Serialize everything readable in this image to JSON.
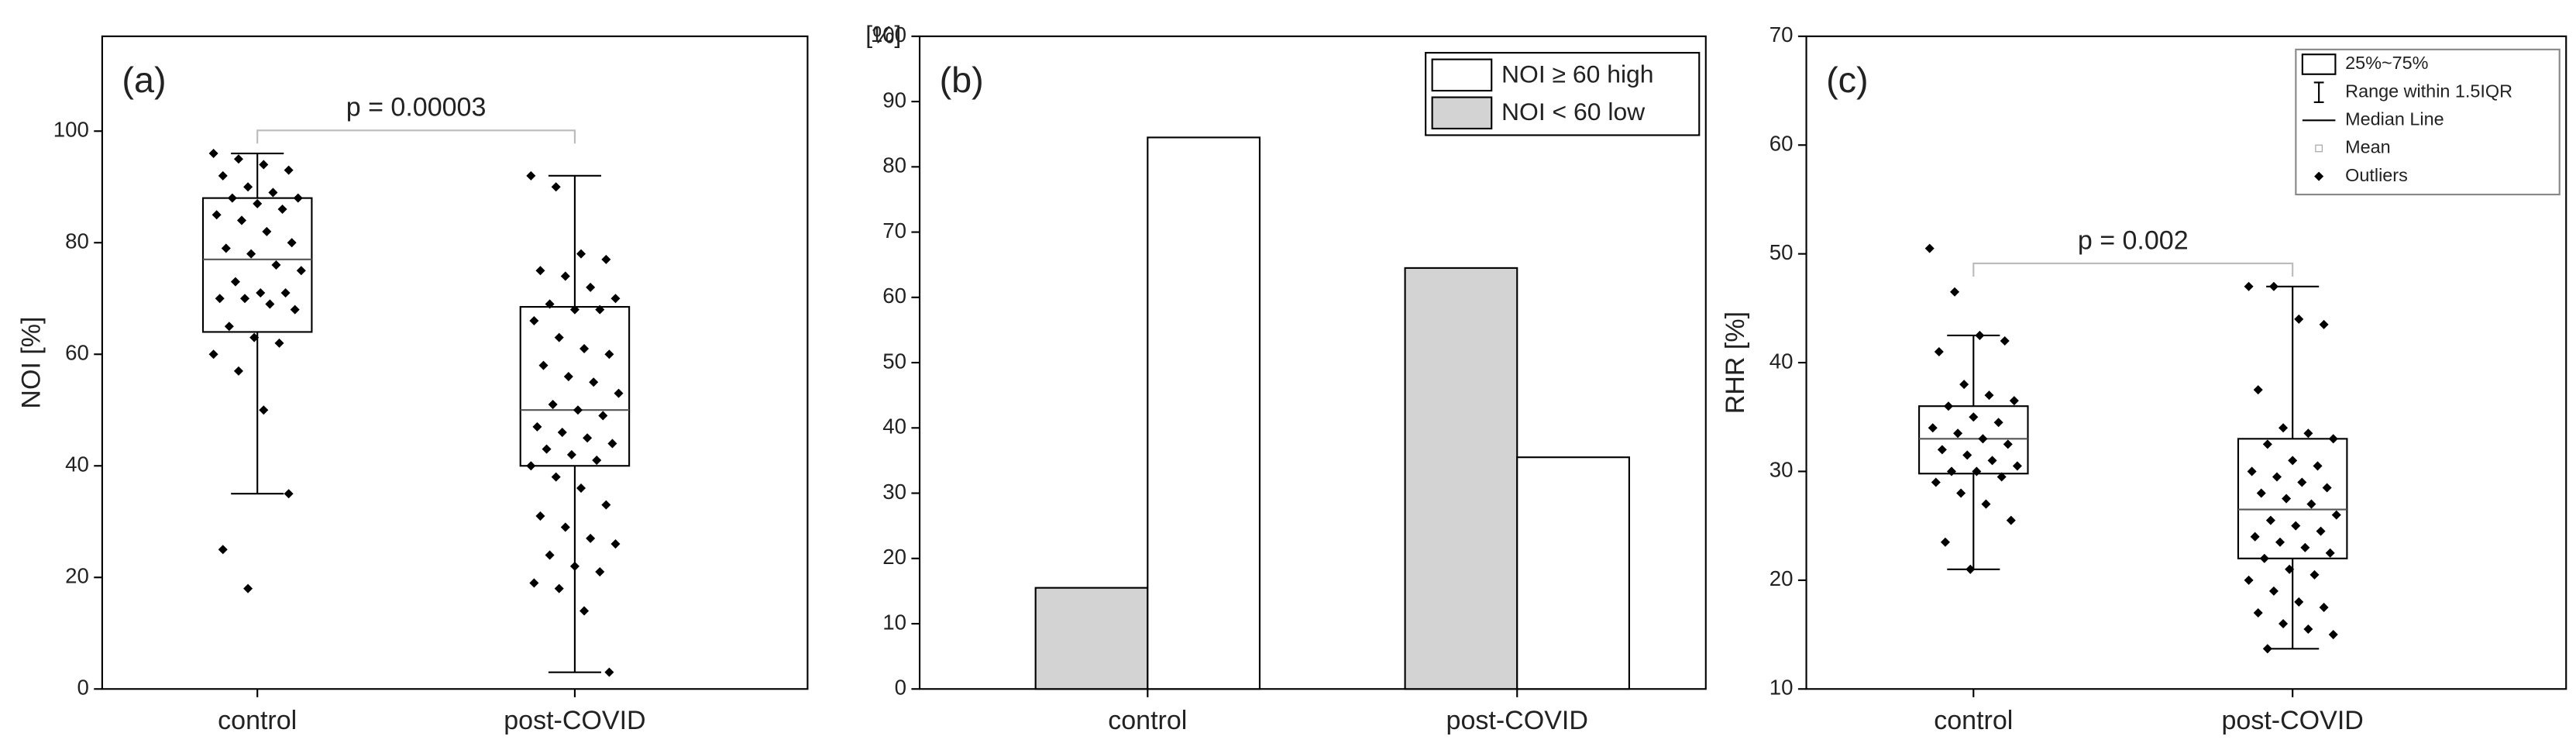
{
  "chart_data": [
    {
      "type": "box",
      "panel_label": "(a)",
      "ylabel": "NOI [%]",
      "annotation": "p = 0.00003",
      "categories": [
        "control",
        "post-COVID"
      ],
      "stats": [
        {
          "min": 35,
          "q1": 64,
          "median": 77,
          "q3": 88,
          "max": 96
        },
        {
          "min": 3,
          "q1": 40,
          "median": 50,
          "q3": 68.5,
          "max": 92
        }
      ],
      "points": [
        [
          96,
          95,
          94,
          93,
          92,
          90,
          89,
          88,
          88,
          87,
          86,
          85,
          84,
          82,
          80,
          79,
          78,
          76,
          75,
          73,
          71,
          71,
          70,
          70,
          69,
          68,
          65,
          63,
          62,
          60,
          57,
          50,
          35,
          25,
          18
        ],
        [
          92,
          90,
          78,
          77,
          75,
          74,
          72,
          70,
          69,
          68,
          68,
          66,
          63,
          61,
          60,
          58,
          56,
          55,
          53,
          51,
          50,
          49,
          47,
          46,
          45,
          44,
          43,
          42,
          41,
          40,
          38,
          36,
          33,
          31,
          29,
          27,
          26,
          24,
          22,
          21,
          19,
          18,
          14,
          3
        ]
      ],
      "color": "#000000",
      "ylim": [
        0,
        117
      ],
      "yticks": [
        0,
        20,
        40,
        60,
        80,
        100
      ]
    },
    {
      "type": "bar",
      "panel_label": "(b)",
      "ylabel": "[%]",
      "legend": "upper right",
      "categories": [
        "control",
        "post-COVID"
      ],
      "series": [
        {
          "name": "NOI < 60 low",
          "color": "#d3d3d3",
          "values": [
            15.5,
            64.5
          ]
        },
        {
          "name": "NOI ≥ 60 high",
          "color": "#ffffff",
          "values": [
            84.5,
            35.5
          ]
        }
      ],
      "ylim": [
        0,
        100
      ],
      "yticks": [
        0,
        10,
        20,
        30,
        40,
        50,
        60,
        70,
        80,
        90,
        100
      ]
    },
    {
      "type": "box",
      "panel_label": "(c)",
      "ylabel": "RHR [%]",
      "annotation": "p = 0.002",
      "legend_items": [
        "25%~75%",
        "Range within 1.5IQR",
        "Median Line",
        "Mean",
        "Outliers"
      ],
      "categories": [
        "control",
        "post-COVID"
      ],
      "stats": [
        {
          "min": 21,
          "q1": 29.8,
          "median": 33,
          "q3": 36,
          "max": 42.5
        },
        {
          "min": 13.7,
          "q1": 22,
          "median": 26.5,
          "q3": 33,
          "max": 47
        }
      ],
      "points": [
        [
          50.5,
          46.5,
          42.5,
          42,
          41,
          38,
          37,
          36.5,
          36,
          35,
          34.5,
          34,
          33.5,
          33,
          32.5,
          32,
          31.5,
          31,
          30.5,
          30,
          30,
          29.5,
          29,
          28,
          27,
          25.5,
          23.5,
          21
        ],
        [
          47,
          47,
          44,
          43.5,
          37.5,
          34,
          33.5,
          33,
          32.5,
          31,
          30.5,
          30,
          29.5,
          29,
          28.5,
          28,
          27.5,
          27,
          26,
          25.5,
          25,
          24.5,
          24,
          23.5,
          23,
          22.5,
          22,
          21,
          20.5,
          20,
          19,
          18,
          17.5,
          17,
          16,
          15.5,
          15,
          13.7
        ]
      ],
      "color": "#000000",
      "ylim": [
        10,
        70
      ],
      "yticks": [
        10,
        20,
        30,
        40,
        50,
        60,
        70
      ]
    }
  ]
}
